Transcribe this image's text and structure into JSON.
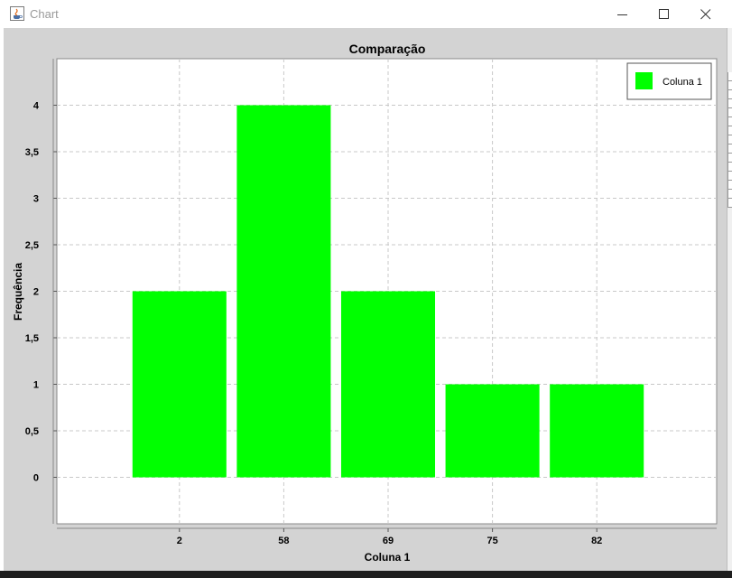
{
  "window": {
    "title": "Chart",
    "icon": "java-cup-icon",
    "buttons": [
      "minimize",
      "maximize",
      "close"
    ]
  },
  "colors": {
    "bar": "#00ff00",
    "panel_bg": "#d3d3d3",
    "plot_bg": "#ffffff",
    "grid": "#c8c8c8"
  },
  "chart_data": {
    "type": "bar",
    "title": "Comparação",
    "xlabel": "Coluna 1",
    "ylabel": "Frequência",
    "categories": [
      "2",
      "58",
      "69",
      "75",
      "82"
    ],
    "series": [
      {
        "name": "Coluna 1",
        "values": [
          2,
          4,
          2,
          1,
          1
        ]
      }
    ],
    "ylim": [
      -0.5,
      4.5
    ],
    "yticks": [
      0,
      0.5,
      1,
      1.5,
      2,
      2.5,
      3,
      3.5,
      4
    ],
    "ytick_labels": [
      "0",
      "0,5",
      "1",
      "1,5",
      "2",
      "2,5",
      "3",
      "3,5",
      "4"
    ],
    "grid": true,
    "legend": {
      "position": "top-right",
      "entries": [
        "Coluna 1"
      ]
    }
  }
}
